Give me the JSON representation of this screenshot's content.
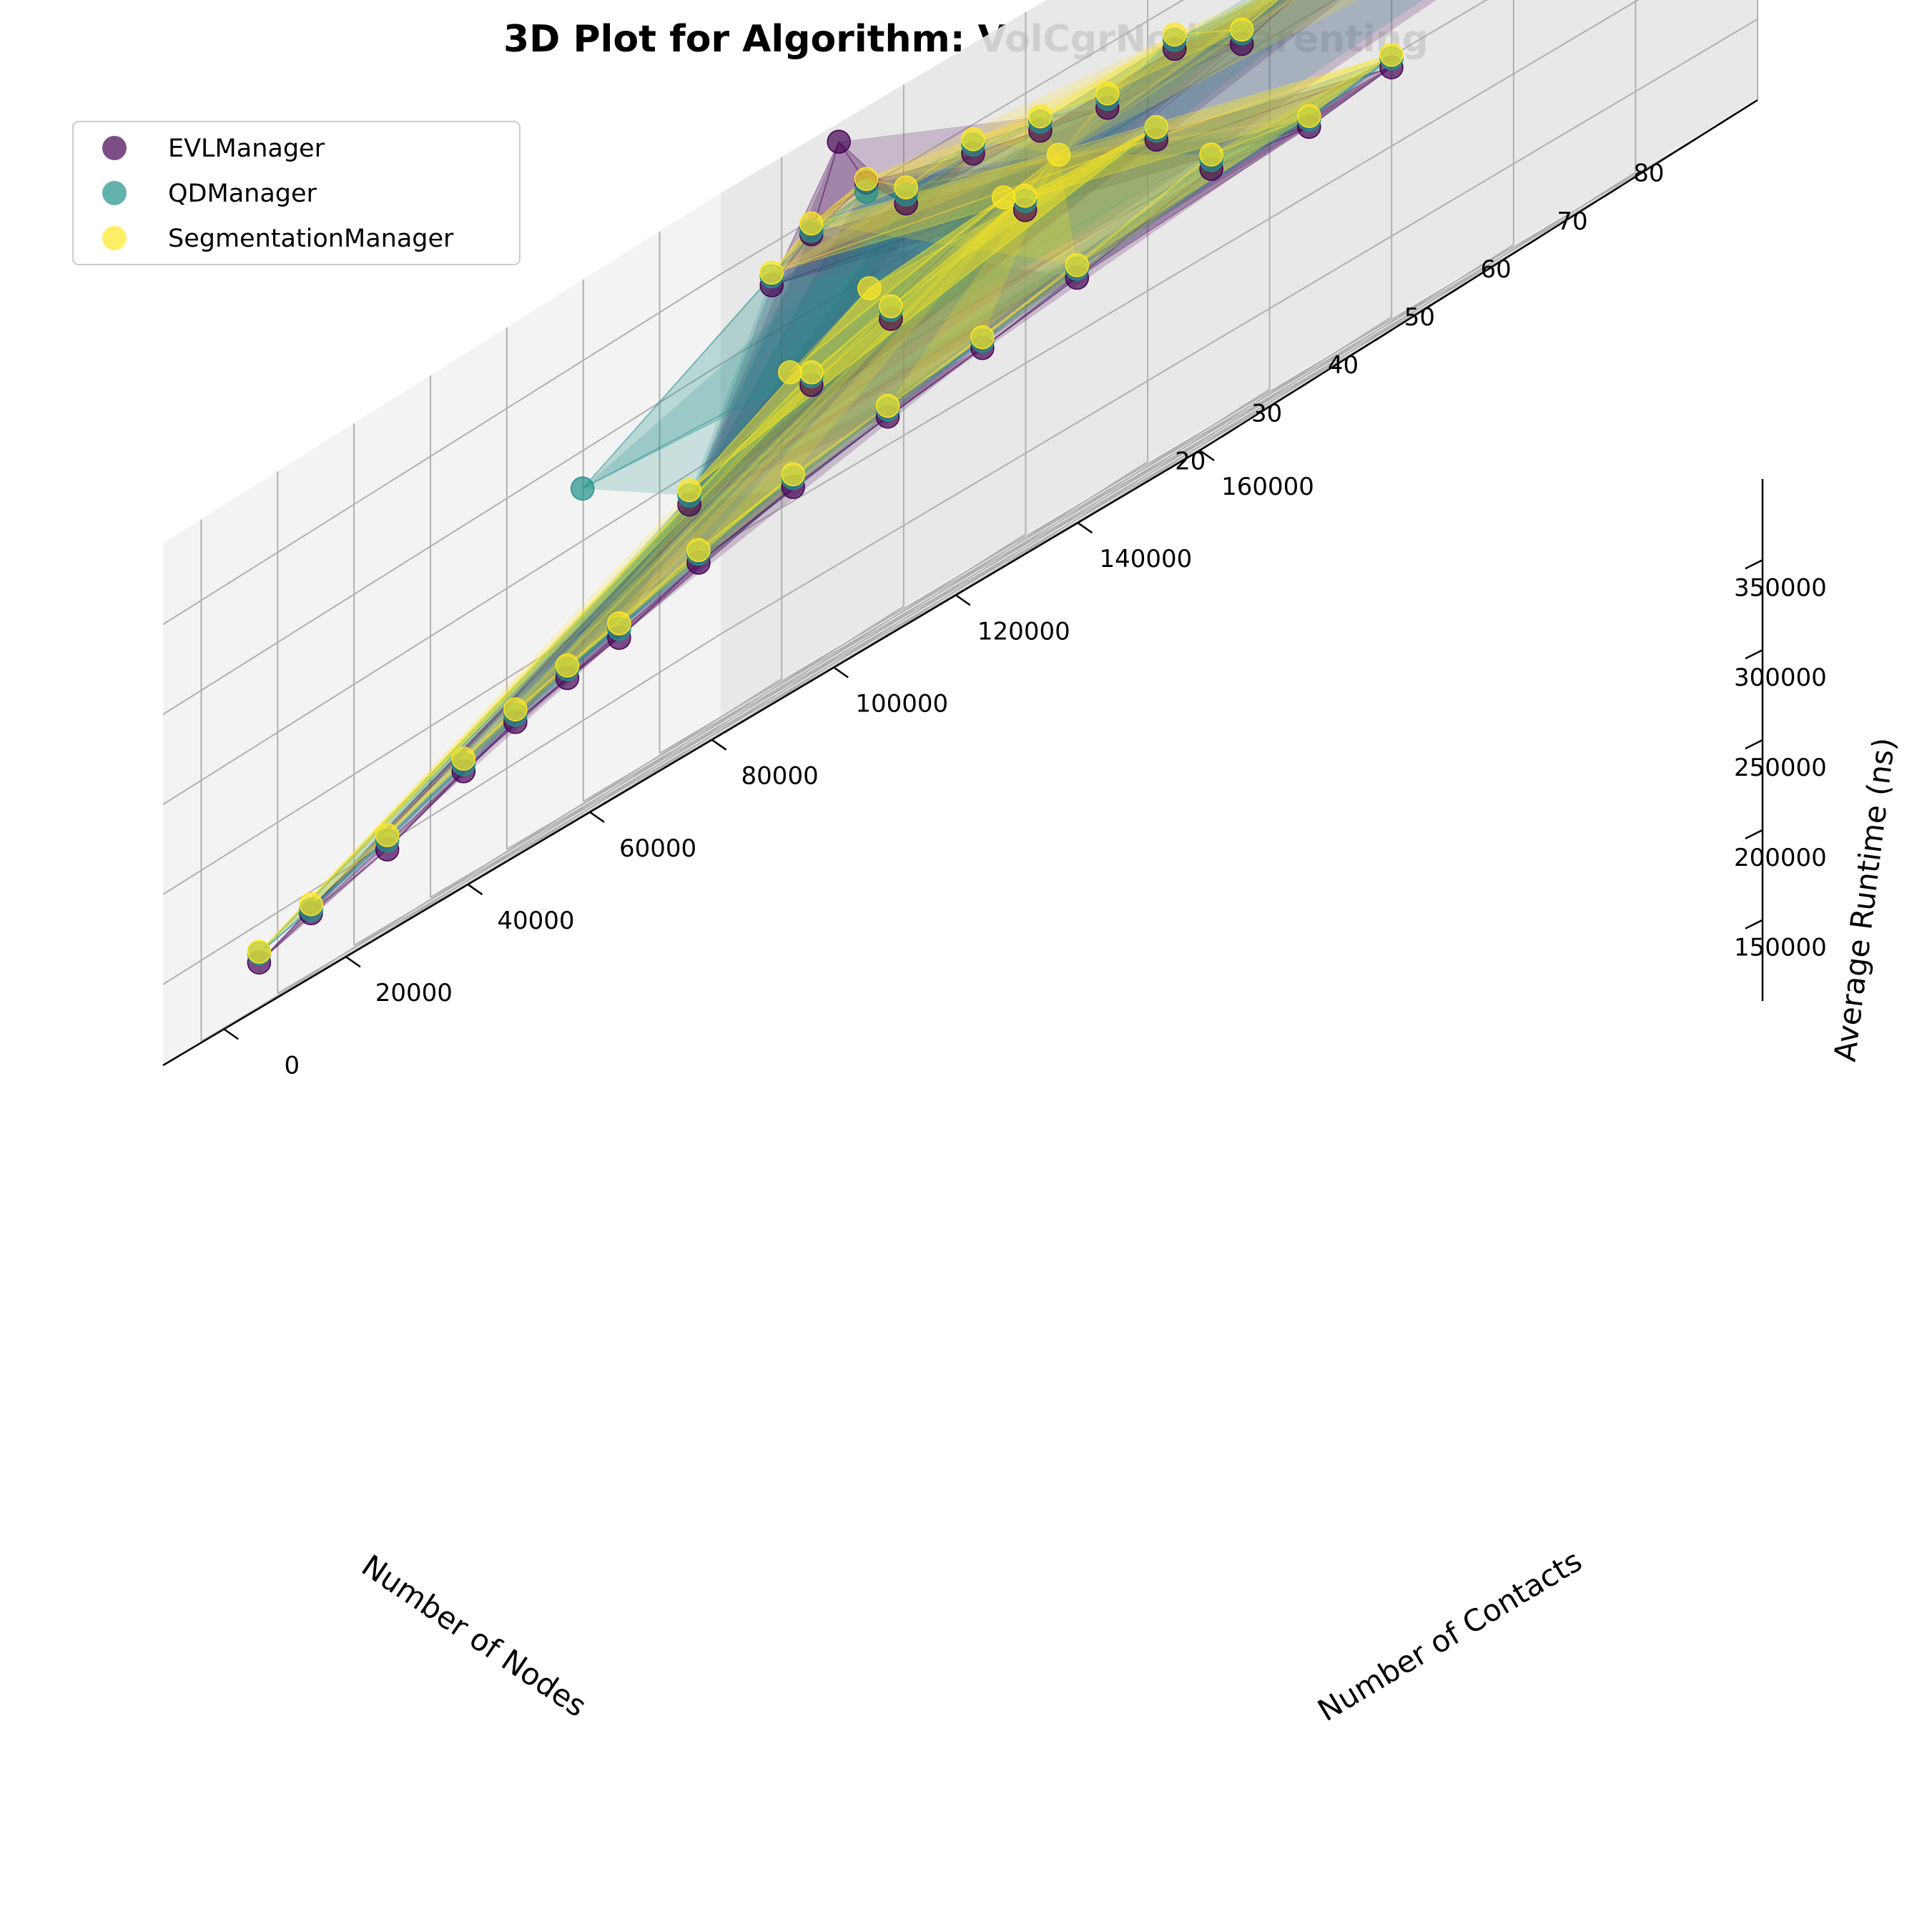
{
  "chart_data": {
    "type": "scatter",
    "subtype": "3d-scatter-with-surface",
    "title": "3D Plot for Algorithm: VolCgrNodeParenting",
    "xlabel": "Number of Nodes",
    "ylabel": "Number of Contacts",
    "zlabel": "Average Runtime (ns)",
    "x_ticks": [
      "20",
      "30",
      "40",
      "50",
      "60",
      "70",
      "80"
    ],
    "y_ticks": [
      "0",
      "20000",
      "40000",
      "60000",
      "80000",
      "100000",
      "120000",
      "140000",
      "160000"
    ],
    "z_ticks": [
      "150000",
      "200000",
      "250000",
      "300000",
      "350000"
    ],
    "xlim": [
      15,
      88
    ],
    "ylim": [
      -10000,
      160000
    ],
    "zlim": [
      105000,
      395000
    ],
    "grid": true,
    "legend_position": "upper-left",
    "series": [
      {
        "name": "EVLManager",
        "color": "#440154",
        "points": [
          [
            85,
            140000,
            275000
          ],
          [
            82,
            134000,
            300000
          ],
          [
            78,
            130000,
            315000
          ],
          [
            74,
            126000,
            325000
          ],
          [
            70,
            120000,
            330000
          ],
          [
            66,
            114000,
            320000
          ],
          [
            62,
            108000,
            310000
          ],
          [
            58,
            102000,
            330000
          ],
          [
            54,
            96000,
            320000
          ],
          [
            50,
            90000,
            330000
          ],
          [
            46,
            84000,
            340000
          ],
          [
            42,
            78000,
            335000
          ],
          [
            40,
            74000,
            360000
          ],
          [
            38,
            72000,
            392000
          ],
          [
            36,
            70000,
            350000
          ],
          [
            34,
            66000,
            335000
          ],
          [
            80,
            110000,
            245000
          ],
          [
            74,
            104000,
            240000
          ],
          [
            66,
            98000,
            250000
          ],
          [
            58,
            86000,
            235000
          ],
          [
            52,
            78000,
            228000
          ],
          [
            46,
            70000,
            222000
          ],
          [
            40,
            62000,
            215000
          ],
          [
            34,
            54000,
            205000
          ],
          [
            30,
            46000,
            190000
          ],
          [
            28,
            40000,
            185000
          ],
          [
            26,
            34000,
            178000
          ],
          [
            24,
            28000,
            168000
          ],
          [
            22,
            18000,
            150000
          ],
          [
            20,
            8000,
            140000
          ],
          [
            18,
            2000,
            130000
          ],
          [
            44,
            60000,
            265000
          ],
          [
            48,
            68000,
            275000
          ],
          [
            56,
            80000,
            290000
          ],
          [
            62,
            94000,
            285000
          ],
          [
            36,
            50000,
            240000
          ]
        ]
      },
      {
        "name": "QDManager",
        "color": "#21918c",
        "points": [
          [
            85,
            140000,
            280000
          ],
          [
            82,
            134000,
            305000
          ],
          [
            78,
            130000,
            318000
          ],
          [
            74,
            126000,
            330000
          ],
          [
            70,
            120000,
            334000
          ],
          [
            66,
            114000,
            324000
          ],
          [
            62,
            108000,
            316000
          ],
          [
            58,
            102000,
            335000
          ],
          [
            54,
            96000,
            325000
          ],
          [
            50,
            90000,
            335000
          ],
          [
            46,
            84000,
            345000
          ],
          [
            42,
            78000,
            340000
          ],
          [
            40,
            74000,
            355000
          ],
          [
            36,
            70000,
            352000
          ],
          [
            34,
            66000,
            340000
          ],
          [
            30,
            40000,
            285000
          ],
          [
            80,
            110000,
            250000
          ],
          [
            74,
            104000,
            244000
          ],
          [
            66,
            98000,
            255000
          ],
          [
            58,
            86000,
            240000
          ],
          [
            52,
            78000,
            232000
          ],
          [
            46,
            70000,
            226000
          ],
          [
            40,
            62000,
            220000
          ],
          [
            34,
            54000,
            210000
          ],
          [
            30,
            46000,
            195000
          ],
          [
            28,
            40000,
            190000
          ],
          [
            26,
            34000,
            182000
          ],
          [
            24,
            28000,
            172000
          ],
          [
            22,
            18000,
            155000
          ],
          [
            20,
            8000,
            142000
          ],
          [
            18,
            2000,
            135000
          ],
          [
            44,
            60000,
            270000
          ],
          [
            48,
            68000,
            280000
          ],
          [
            56,
            80000,
            295000
          ],
          [
            62,
            94000,
            290000
          ],
          [
            36,
            50000,
            245000
          ]
        ]
      },
      {
        "name": "SegmentationManager",
        "color": "#fde725",
        "points": [
          [
            85,
            140000,
            282000
          ],
          [
            82,
            134000,
            310000
          ],
          [
            80,
            132000,
            322000
          ],
          [
            78,
            130000,
            320000
          ],
          [
            74,
            126000,
            332000
          ],
          [
            70,
            120000,
            336000
          ],
          [
            66,
            114000,
            326000
          ],
          [
            62,
            108000,
            318000
          ],
          [
            58,
            102000,
            338000
          ],
          [
            54,
            96000,
            328000
          ],
          [
            50,
            90000,
            338000
          ],
          [
            46,
            84000,
            348000
          ],
          [
            42,
            78000,
            344000
          ],
          [
            40,
            74000,
            362000
          ],
          [
            36,
            70000,
            356000
          ],
          [
            34,
            66000,
            342000
          ],
          [
            80,
            110000,
            252000
          ],
          [
            74,
            104000,
            246000
          ],
          [
            66,
            98000,
            258000
          ],
          [
            58,
            86000,
            242000
          ],
          [
            52,
            78000,
            234000
          ],
          [
            46,
            70000,
            228000
          ],
          [
            40,
            62000,
            222000
          ],
          [
            34,
            54000,
            212000
          ],
          [
            30,
            46000,
            198000
          ],
          [
            28,
            40000,
            192000
          ],
          [
            26,
            34000,
            185000
          ],
          [
            24,
            28000,
            175000
          ],
          [
            22,
            18000,
            158000
          ],
          [
            20,
            8000,
            145000
          ],
          [
            18,
            2000,
            136000
          ],
          [
            44,
            60000,
            272000
          ],
          [
            48,
            68000,
            282000
          ],
          [
            56,
            80000,
            298000
          ],
          [
            62,
            94000,
            292000
          ],
          [
            36,
            50000,
            248000
          ],
          [
            42,
            72000,
            300000
          ],
          [
            50,
            84000,
            305000
          ],
          [
            38,
            64000,
            280000
          ],
          [
            54,
            88000,
            310000
          ]
        ]
      }
    ]
  },
  "legend": {
    "items": [
      {
        "label": "EVLManager",
        "color": "#440154"
      },
      {
        "label": "QDManager",
        "color": "#21918c"
      },
      {
        "label": "SegmentationManager",
        "color": "#fde725"
      }
    ]
  }
}
